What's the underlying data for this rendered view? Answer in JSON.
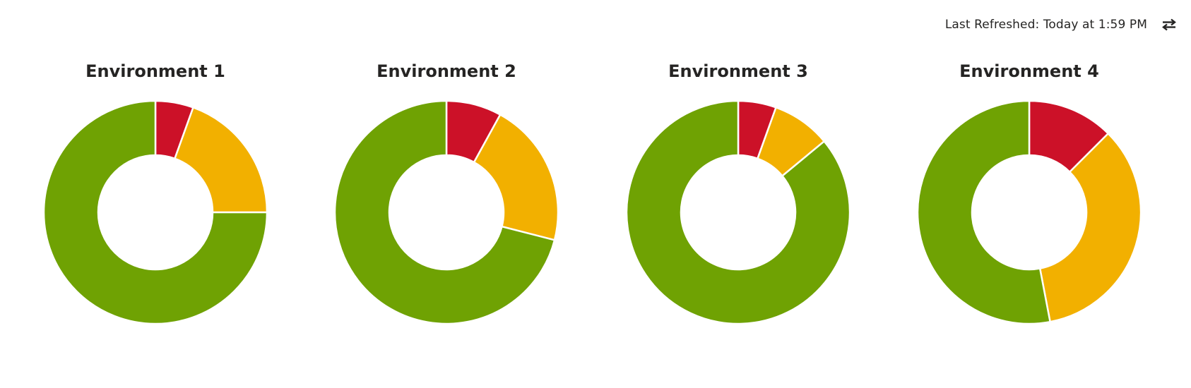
{
  "header": {
    "last_refreshed": "Last Refreshed: Today at 1:59 PM",
    "refresh_icon": "refresh-arrows-icon"
  },
  "colors": {
    "red": "#CC1128",
    "yellow": "#F2B000",
    "green": "#6FA203",
    "separator": "#ffffff"
  },
  "chart_data": [
    {
      "type": "pie",
      "title": "Environment 1",
      "slices": [
        {
          "color": "#CC1128",
          "value": 5.5
        },
        {
          "color": "#F2B000",
          "value": 19.5
        },
        {
          "color": "#6FA203",
          "value": 75.0
        }
      ]
    },
    {
      "type": "pie",
      "title": "Environment 2",
      "slices": [
        {
          "color": "#CC1128",
          "value": 8.0
        },
        {
          "color": "#F2B000",
          "value": 21.0
        },
        {
          "color": "#6FA203",
          "value": 71.0
        }
      ]
    },
    {
      "type": "pie",
      "title": "Environment 3",
      "slices": [
        {
          "color": "#CC1128",
          "value": 5.5
        },
        {
          "color": "#F2B000",
          "value": 8.5
        },
        {
          "color": "#6FA203",
          "value": 86.0
        }
      ]
    },
    {
      "type": "pie",
      "title": "Environment 4",
      "slices": [
        {
          "color": "#CC1128",
          "value": 12.5
        },
        {
          "color": "#F2B000",
          "value": 34.5
        },
        {
          "color": "#6FA203",
          "value": 53.0
        }
      ]
    }
  ]
}
